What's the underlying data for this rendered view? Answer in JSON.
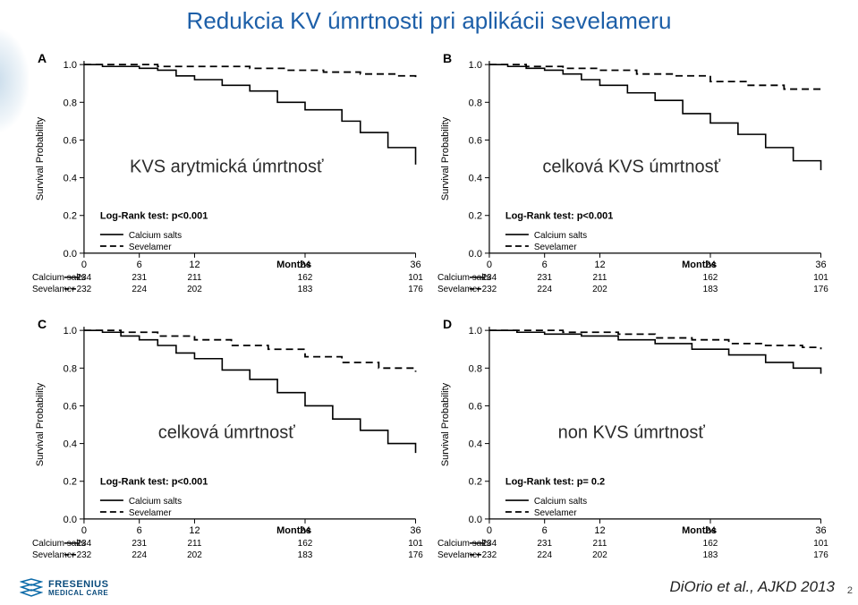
{
  "title": "Redukcia KV úmrtnosti pri aplikácii sevelameru",
  "citation": "DiOrio et al., AJKD 2013",
  "page": "2",
  "logo": {
    "line1": "FRESENIUS",
    "line2": "MEDICAL CARE"
  },
  "axisY": {
    "label": "Survival Probability",
    "ticks": [
      0.0,
      0.2,
      0.4,
      0.6,
      0.8,
      1.0
    ],
    "fontsize": 11
  },
  "axisX": {
    "label": "Months",
    "ticks": [
      0,
      6,
      12,
      24,
      36
    ],
    "fontsize": 11
  },
  "riskTable": {
    "rowLabels": [
      "Calcium salts",
      "Sevelamer"
    ],
    "patterns": [
      "solid",
      "dashed"
    ],
    "values": [
      [
        234,
        231,
        211,
        162,
        101
      ],
      [
        232,
        224,
        202,
        183,
        176
      ]
    ],
    "fontsize": 10
  },
  "legend": {
    "items": [
      {
        "label": "Calcium salts",
        "pattern": "solid"
      },
      {
        "label": "Sevelamer",
        "pattern": "dashed"
      }
    ],
    "fontsize": 10
  },
  "colors": {
    "chartBg": "#ffffff",
    "axis": "#000000",
    "line": "#000000",
    "text": "#000000",
    "title": "#1d5fa8"
  },
  "panels": [
    {
      "letter": "A",
      "overlay": "KVS arytmická úmrtnosť",
      "logrank": "Log-Rank test: p<0.001",
      "series": {
        "calcium": [
          [
            0,
            1.0
          ],
          [
            2,
            0.99
          ],
          [
            4,
            0.99
          ],
          [
            6,
            0.98
          ],
          [
            8,
            0.97
          ],
          [
            10,
            0.94
          ],
          [
            12,
            0.92
          ],
          [
            15,
            0.89
          ],
          [
            18,
            0.86
          ],
          [
            21,
            0.8
          ],
          [
            24,
            0.76
          ],
          [
            28,
            0.7
          ],
          [
            30,
            0.64
          ],
          [
            33,
            0.56
          ],
          [
            36,
            0.47
          ]
        ],
        "sevelamer": [
          [
            0,
            1.0
          ],
          [
            4,
            1.0
          ],
          [
            8,
            0.99
          ],
          [
            12,
            0.99
          ],
          [
            18,
            0.98
          ],
          [
            22,
            0.97
          ],
          [
            26,
            0.96
          ],
          [
            30,
            0.95
          ],
          [
            34,
            0.94
          ],
          [
            36,
            0.93
          ]
        ]
      }
    },
    {
      "letter": "B",
      "overlay": "celková KVS úmrtnosť",
      "logrank": "Log-Rank test: p<0.001",
      "series": {
        "calcium": [
          [
            0,
            1.0
          ],
          [
            2,
            0.99
          ],
          [
            4,
            0.98
          ],
          [
            6,
            0.97
          ],
          [
            8,
            0.95
          ],
          [
            10,
            0.92
          ],
          [
            12,
            0.89
          ],
          [
            15,
            0.85
          ],
          [
            18,
            0.81
          ],
          [
            21,
            0.74
          ],
          [
            24,
            0.69
          ],
          [
            27,
            0.63
          ],
          [
            30,
            0.56
          ],
          [
            33,
            0.49
          ],
          [
            36,
            0.44
          ]
        ],
        "sevelamer": [
          [
            0,
            1.0
          ],
          [
            4,
            0.99
          ],
          [
            8,
            0.98
          ],
          [
            12,
            0.97
          ],
          [
            16,
            0.95
          ],
          [
            20,
            0.94
          ],
          [
            24,
            0.91
          ],
          [
            28,
            0.89
          ],
          [
            32,
            0.87
          ],
          [
            36,
            0.85
          ]
        ]
      }
    },
    {
      "letter": "C",
      "overlay": "celková úmrtnosť",
      "logrank": "Log-Rank test: p<0.001",
      "series": {
        "calcium": [
          [
            0,
            1.0
          ],
          [
            2,
            0.99
          ],
          [
            4,
            0.97
          ],
          [
            6,
            0.95
          ],
          [
            8,
            0.92
          ],
          [
            10,
            0.88
          ],
          [
            12,
            0.85
          ],
          [
            15,
            0.79
          ],
          [
            18,
            0.74
          ],
          [
            21,
            0.67
          ],
          [
            24,
            0.6
          ],
          [
            27,
            0.53
          ],
          [
            30,
            0.47
          ],
          [
            33,
            0.4
          ],
          [
            36,
            0.35
          ]
        ],
        "sevelamer": [
          [
            0,
            1.0
          ],
          [
            4,
            0.99
          ],
          [
            8,
            0.97
          ],
          [
            12,
            0.95
          ],
          [
            16,
            0.92
          ],
          [
            20,
            0.9
          ],
          [
            24,
            0.86
          ],
          [
            28,
            0.83
          ],
          [
            32,
            0.8
          ],
          [
            36,
            0.78
          ]
        ]
      }
    },
    {
      "letter": "D",
      "overlay": "non KVS úmrtnosť",
      "logrank": "Log-Rank test: p= 0.2",
      "series": {
        "calcium": [
          [
            0,
            1.0
          ],
          [
            3,
            0.99
          ],
          [
            6,
            0.98
          ],
          [
            10,
            0.97
          ],
          [
            14,
            0.95
          ],
          [
            18,
            0.93
          ],
          [
            22,
            0.9
          ],
          [
            26,
            0.87
          ],
          [
            30,
            0.83
          ],
          [
            33,
            0.8
          ],
          [
            36,
            0.77
          ]
        ],
        "sevelamer": [
          [
            0,
            1.0
          ],
          [
            4,
            1.0
          ],
          [
            8,
            0.99
          ],
          [
            14,
            0.98
          ],
          [
            18,
            0.96
          ],
          [
            22,
            0.95
          ],
          [
            26,
            0.93
          ],
          [
            30,
            0.92
          ],
          [
            34,
            0.91
          ],
          [
            36,
            0.9
          ]
        ]
      }
    }
  ]
}
